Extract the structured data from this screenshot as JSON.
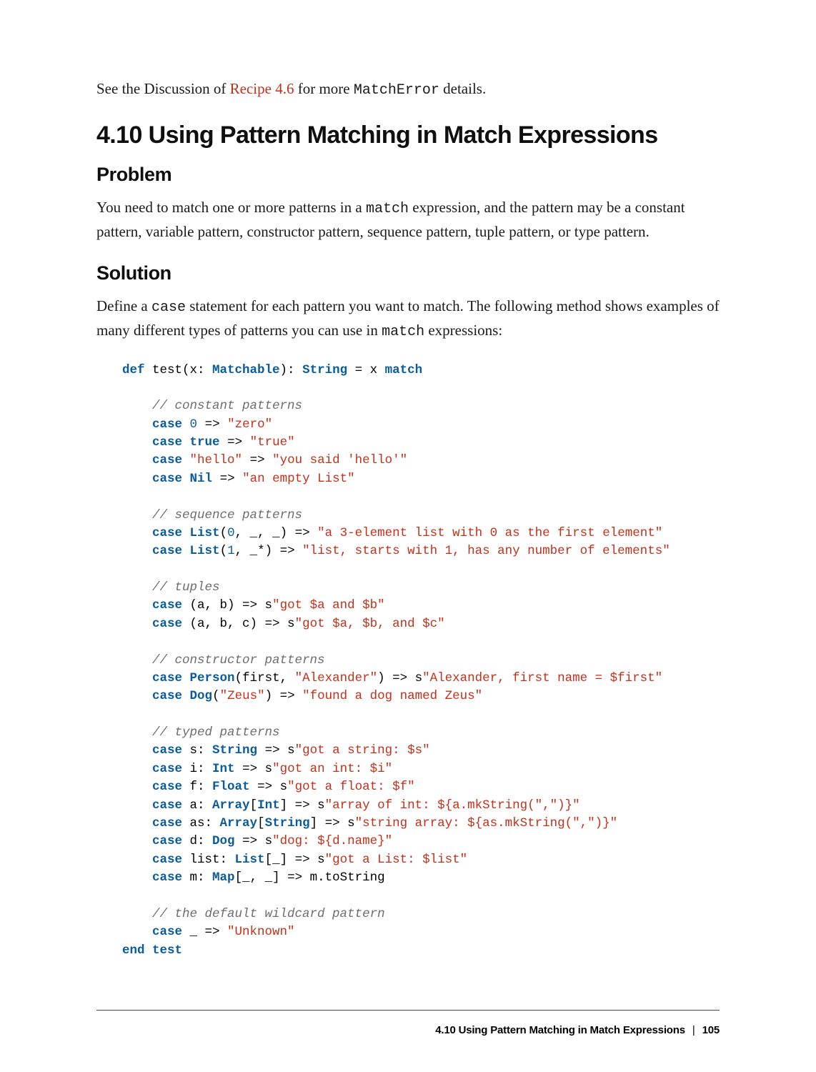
{
  "intro": {
    "pre": "See the Discussion of ",
    "link": "Recipe 4.6",
    "mid": " for more ",
    "code": "MatchError",
    "post": " details."
  },
  "section_title": "4.10 Using Pattern Matching in Match Expressions",
  "problem": {
    "heading": "Problem",
    "para_pre": "You need to match one or more patterns in a ",
    "para_code": "match",
    "para_post": " expression, and the pattern may be a constant pattern, variable pattern, constructor pattern, sequence pattern, tuple pattern, or type pattern."
  },
  "solution": {
    "heading": "Solution",
    "para_pre": "Define a ",
    "para_code1": "case",
    "para_mid": " statement for each pattern you want to match. The following method shows examples of many different types of patterns you can use in ",
    "para_code2": "match",
    "para_post": " expressions:"
  },
  "code": {
    "colors": {
      "keyword": "#0a5b9c",
      "type": "#0a5b9c",
      "number": "#0a5b9c",
      "string": "#c43019",
      "comment": "#6d6d6d",
      "text": "#000000",
      "background": "#ffffff"
    },
    "font_family": "Consolas, Liberation Mono, Menlo, monospace",
    "font_size_pt": 13,
    "lines": [
      {
        "t": "sig",
        "tokens": [
          [
            "kw",
            "def"
          ],
          [
            "txt",
            " test(x: "
          ],
          [
            "type",
            "Matchable"
          ],
          [
            "txt",
            "): "
          ],
          [
            "type",
            "String"
          ],
          [
            "txt",
            " = x "
          ],
          [
            "kw",
            "match"
          ]
        ]
      },
      {
        "t": "blank"
      },
      {
        "t": "cmt",
        "text": "// constant patterns"
      },
      {
        "t": "case",
        "tokens": [
          [
            "kw",
            "case"
          ],
          [
            "txt",
            " "
          ],
          [
            "num",
            "0"
          ],
          [
            "txt",
            " => "
          ],
          [
            "str",
            "\"zero\""
          ]
        ]
      },
      {
        "t": "case",
        "tokens": [
          [
            "kw",
            "case"
          ],
          [
            "txt",
            " "
          ],
          [
            "kw2",
            "true"
          ],
          [
            "txt",
            " => "
          ],
          [
            "str",
            "\"true\""
          ]
        ]
      },
      {
        "t": "case",
        "tokens": [
          [
            "kw",
            "case"
          ],
          [
            "txt",
            " "
          ],
          [
            "str",
            "\"hello\""
          ],
          [
            "txt",
            " => "
          ],
          [
            "str",
            "\"you said 'hello'\""
          ]
        ]
      },
      {
        "t": "case",
        "tokens": [
          [
            "kw",
            "case"
          ],
          [
            "txt",
            " "
          ],
          [
            "type",
            "Nil"
          ],
          [
            "txt",
            " => "
          ],
          [
            "str",
            "\"an empty List\""
          ]
        ]
      },
      {
        "t": "blank"
      },
      {
        "t": "cmt",
        "text": "// sequence patterns"
      },
      {
        "t": "case",
        "tokens": [
          [
            "kw",
            "case"
          ],
          [
            "txt",
            " "
          ],
          [
            "type",
            "List"
          ],
          [
            "txt",
            "("
          ],
          [
            "num",
            "0"
          ],
          [
            "txt",
            ", _, _) => "
          ],
          [
            "str",
            "\"a 3-element list with 0 as the first element\""
          ]
        ]
      },
      {
        "t": "case",
        "tokens": [
          [
            "kw",
            "case"
          ],
          [
            "txt",
            " "
          ],
          [
            "type",
            "List"
          ],
          [
            "txt",
            "("
          ],
          [
            "num",
            "1"
          ],
          [
            "txt",
            ", _*) => "
          ],
          [
            "str",
            "\"list, starts with 1, has any number of elements\""
          ]
        ]
      },
      {
        "t": "blank"
      },
      {
        "t": "cmt",
        "text": "// tuples"
      },
      {
        "t": "case",
        "tokens": [
          [
            "kw",
            "case"
          ],
          [
            "txt",
            " (a, b) => s"
          ],
          [
            "str",
            "\"got $a and $b\""
          ]
        ]
      },
      {
        "t": "case",
        "tokens": [
          [
            "kw",
            "case"
          ],
          [
            "txt",
            " (a, b, c) => s"
          ],
          [
            "str",
            "\"got $a, $b, and $c\""
          ]
        ]
      },
      {
        "t": "blank"
      },
      {
        "t": "cmt",
        "text": "// constructor patterns"
      },
      {
        "t": "case",
        "tokens": [
          [
            "kw",
            "case"
          ],
          [
            "txt",
            " "
          ],
          [
            "type",
            "Person"
          ],
          [
            "txt",
            "(first, "
          ],
          [
            "str",
            "\"Alexander\""
          ],
          [
            "txt",
            ") => s"
          ],
          [
            "str",
            "\"Alexander, first name = $first\""
          ]
        ]
      },
      {
        "t": "case",
        "tokens": [
          [
            "kw",
            "case"
          ],
          [
            "txt",
            " "
          ],
          [
            "type",
            "Dog"
          ],
          [
            "txt",
            "("
          ],
          [
            "str",
            "\"Zeus\""
          ],
          [
            "txt",
            ") => "
          ],
          [
            "str",
            "\"found a dog named Zeus\""
          ]
        ]
      },
      {
        "t": "blank"
      },
      {
        "t": "cmt",
        "text": "// typed patterns"
      },
      {
        "t": "case",
        "tokens": [
          [
            "kw",
            "case"
          ],
          [
            "txt",
            " s: "
          ],
          [
            "type",
            "String"
          ],
          [
            "txt",
            " => s"
          ],
          [
            "str",
            "\"got a string: $s\""
          ]
        ]
      },
      {
        "t": "case",
        "tokens": [
          [
            "kw",
            "case"
          ],
          [
            "txt",
            " i: "
          ],
          [
            "type",
            "Int"
          ],
          [
            "txt",
            " => s"
          ],
          [
            "str",
            "\"got an int: $i\""
          ]
        ]
      },
      {
        "t": "case",
        "tokens": [
          [
            "kw",
            "case"
          ],
          [
            "txt",
            " f: "
          ],
          [
            "type",
            "Float"
          ],
          [
            "txt",
            " => s"
          ],
          [
            "str",
            "\"got a float: $f\""
          ]
        ]
      },
      {
        "t": "case",
        "tokens": [
          [
            "kw",
            "case"
          ],
          [
            "txt",
            " a: "
          ],
          [
            "type",
            "Array"
          ],
          [
            "txt",
            "["
          ],
          [
            "type",
            "Int"
          ],
          [
            "txt",
            "] => s"
          ],
          [
            "str",
            "\"array of int: ${a.mkString(\",\")}\""
          ]
        ]
      },
      {
        "t": "case",
        "tokens": [
          [
            "kw",
            "case"
          ],
          [
            "txt",
            " as: "
          ],
          [
            "type",
            "Array"
          ],
          [
            "txt",
            "["
          ],
          [
            "type",
            "String"
          ],
          [
            "txt",
            "] => s"
          ],
          [
            "str",
            "\"string array: ${as.mkString(\",\")}\""
          ]
        ]
      },
      {
        "t": "case",
        "tokens": [
          [
            "kw",
            "case"
          ],
          [
            "txt",
            " d: "
          ],
          [
            "type",
            "Dog"
          ],
          [
            "txt",
            " => s"
          ],
          [
            "str",
            "\"dog: ${d.name}\""
          ]
        ]
      },
      {
        "t": "case",
        "tokens": [
          [
            "kw",
            "case"
          ],
          [
            "txt",
            " list: "
          ],
          [
            "type",
            "List"
          ],
          [
            "txt",
            "[_] => s"
          ],
          [
            "str",
            "\"got a List: $list\""
          ]
        ]
      },
      {
        "t": "case",
        "tokens": [
          [
            "kw",
            "case"
          ],
          [
            "txt",
            " m: "
          ],
          [
            "type",
            "Map"
          ],
          [
            "txt",
            "[_, _] => m.toString"
          ]
        ]
      },
      {
        "t": "blank"
      },
      {
        "t": "cmt",
        "text": "// the default wildcard pattern"
      },
      {
        "t": "case",
        "tokens": [
          [
            "kw",
            "case"
          ],
          [
            "txt",
            " _ => "
          ],
          [
            "str",
            "\"Unknown\""
          ]
        ]
      },
      {
        "t": "end",
        "tokens": [
          [
            "kw",
            "end"
          ],
          [
            "txt",
            " "
          ],
          [
            "kw",
            "test"
          ]
        ]
      }
    ]
  },
  "footer": {
    "title": "4.10 Using Pattern Matching in Match Expressions",
    "page": "105"
  }
}
